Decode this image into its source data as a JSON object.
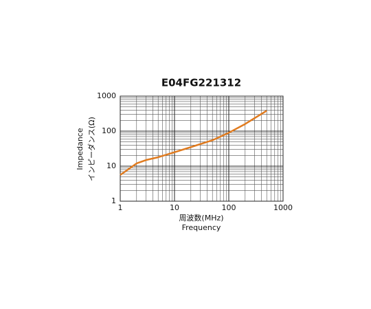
{
  "chart_data": {
    "type": "line",
    "title": "E04FG221312",
    "y_label": [
      "Impedance",
      "インピーダンス(Ω)"
    ],
    "x_label": [
      "周波数(MHz)",
      "Frequency"
    ],
    "x": [
      1,
      2,
      3,
      5,
      10,
      20,
      50,
      100,
      200,
      500
    ],
    "series": [
      {
        "name": "E04FG221312",
        "color": "#e07b1f",
        "values": [
          5.6,
          12,
          15,
          18,
          25,
          35,
          55,
          90,
          160,
          385
        ]
      }
    ],
    "xlim": [
      1,
      1000
    ],
    "ylim": [
      1,
      1000
    ],
    "xticks": [
      1,
      10,
      100,
      1000
    ],
    "yticks": [
      1,
      10,
      100,
      1000
    ],
    "xscale": "log",
    "yscale": "log",
    "grid": true
  }
}
